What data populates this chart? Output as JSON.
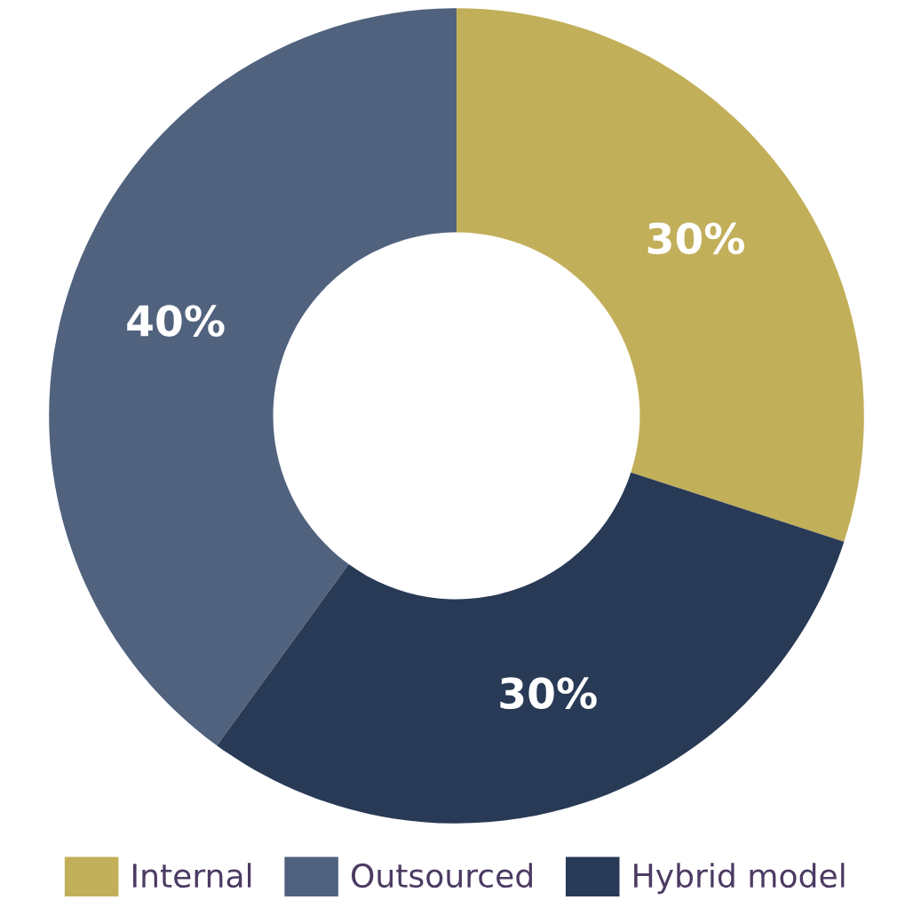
{
  "chart_data": {
    "type": "donut",
    "categories": [
      "Internal",
      "Outsourced",
      "Hybrid model"
    ],
    "values": [
      30,
      40,
      30
    ],
    "colors": [
      "#c2af5a",
      "#50627e",
      "#283a56"
    ],
    "value_labels": [
      "30%",
      "40%",
      "30%"
    ],
    "legend": "bottom"
  }
}
